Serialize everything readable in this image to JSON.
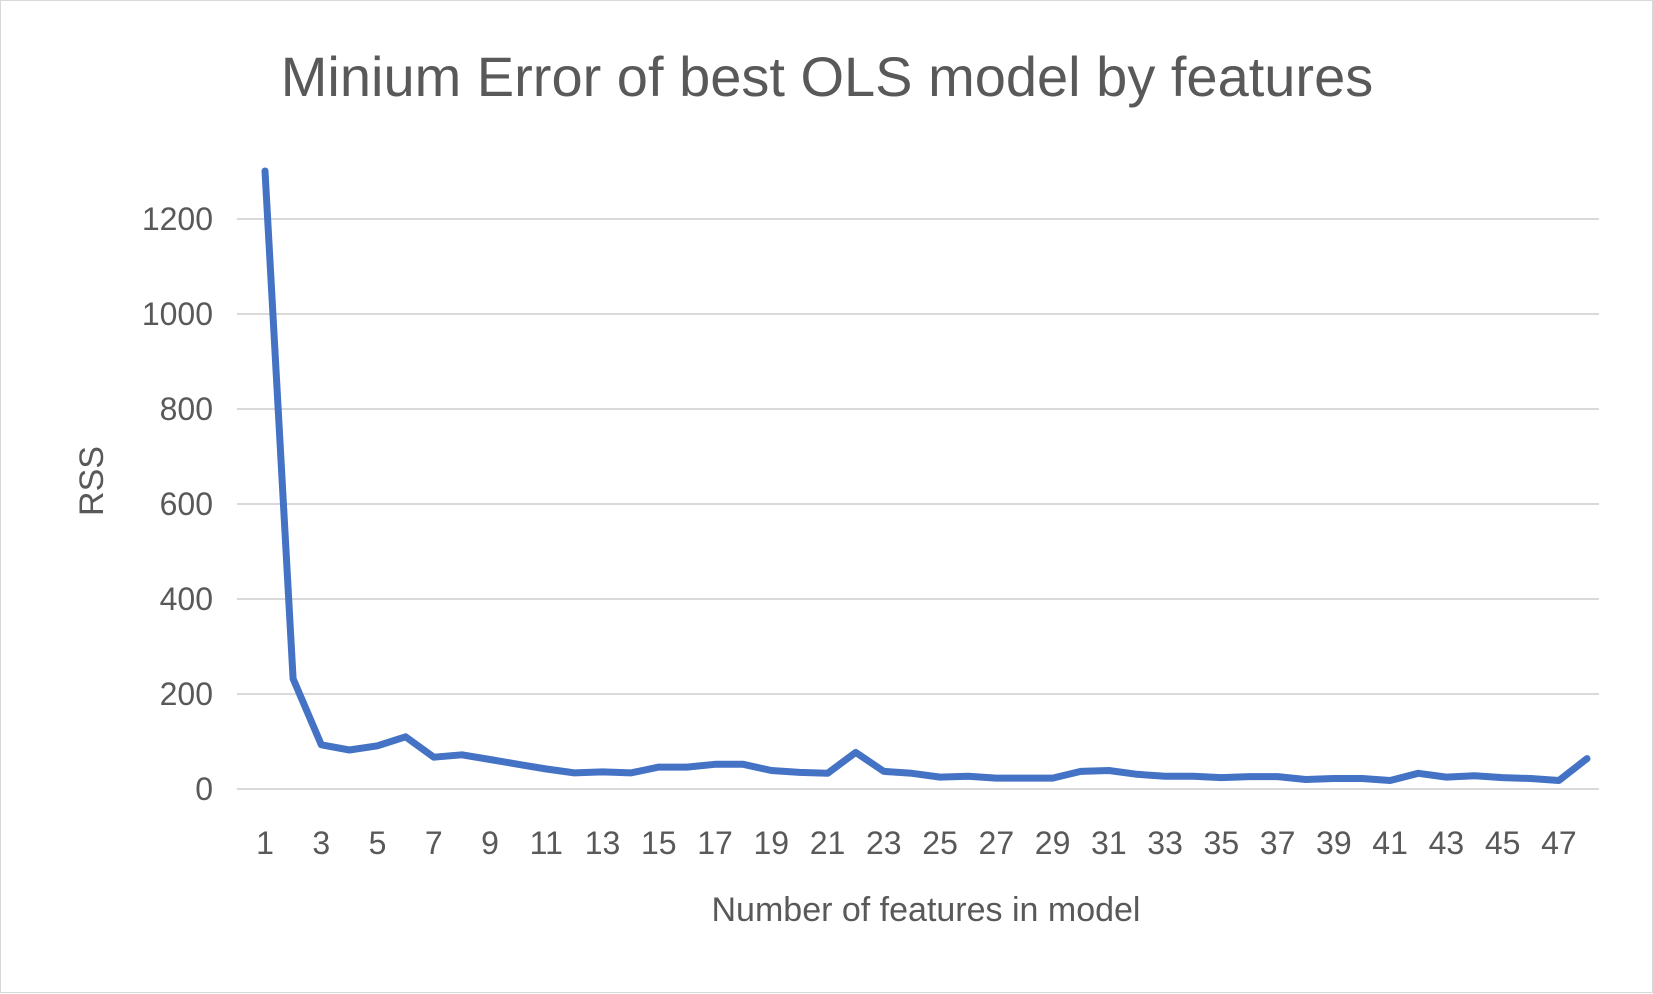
{
  "chart_data": {
    "type": "line",
    "title": "Minium Error of best OLS model by features",
    "xlabel": "Number of features in model",
    "ylabel": "RSS",
    "ylim": [
      0,
      1200
    ],
    "yticks": [
      0,
      200,
      400,
      600,
      800,
      1000,
      1200
    ],
    "x": [
      1,
      2,
      3,
      4,
      5,
      6,
      7,
      8,
      9,
      10,
      11,
      12,
      13,
      14,
      15,
      16,
      17,
      18,
      19,
      20,
      21,
      22,
      23,
      24,
      25,
      26,
      27,
      28,
      29,
      30,
      31,
      32,
      33,
      34,
      35,
      36,
      37,
      38,
      39,
      40,
      41,
      42,
      43,
      44,
      45,
      46,
      47,
      48
    ],
    "xtick_labels": [
      "1",
      "3",
      "5",
      "7",
      "9",
      "11",
      "13",
      "15",
      "17",
      "19",
      "21",
      "23",
      "25",
      "27",
      "29",
      "31",
      "33",
      "35",
      "37",
      "39",
      "41",
      "43",
      "45",
      "47"
    ],
    "series": [
      {
        "color": "#4472c4",
        "values": [
          1305,
          232,
          93,
          82,
          91,
          110,
          67,
          72,
          62,
          52,
          42,
          34,
          36,
          34,
          46,
          46,
          52,
          52,
          39,
          35,
          33,
          77,
          37,
          33,
          25,
          27,
          23,
          23,
          23,
          37,
          39,
          31,
          27,
          27,
          24,
          26,
          26,
          20,
          22,
          22,
          18,
          33,
          25,
          28,
          24,
          22,
          18,
          64
        ]
      }
    ],
    "grid": true,
    "legend": "none"
  }
}
